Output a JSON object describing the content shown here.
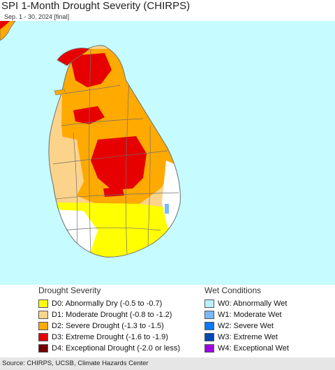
{
  "header": {
    "title": "SPI 1-Month Drought Severity (CHIRPS)",
    "subtitle": "Sep. 1 - 30, 2024 [final]"
  },
  "map": {
    "ocean_color": "#c6fbff",
    "boundary_color": "#6f6f6f"
  },
  "legend": {
    "drought_title": "Drought Severity",
    "wet_title": "Wet Conditions",
    "drought": [
      {
        "label": "D0: Abnormally Dry (-0.5 to -0.7)",
        "color": "#ffff00"
      },
      {
        "label": "D1: Moderate Drought (-0.8 to -1.2)",
        "color": "#fcd38a"
      },
      {
        "label": "D2: Severe Drought (-1.3 to -1.5)",
        "color": "#ffaa00"
      },
      {
        "label": "D3: Extreme Drought (-1.6 to -1.9)",
        "color": "#e60000"
      },
      {
        "label": "D4: Exceptional Drought (-2.0 or less)",
        "color": "#730000"
      }
    ],
    "wet": [
      {
        "label": "W0: Abnormally Wet",
        "color": "#b9f0ff"
      },
      {
        "label": "W1: Moderate Wet",
        "color": "#78b9ff"
      },
      {
        "label": "W2: Severe Wet",
        "color": "#0a78ff"
      },
      {
        "label": "W3: Extreme Wet",
        "color": "#0046b4"
      },
      {
        "label": "W4: Exceptional Wet",
        "color": "#a000e6"
      }
    ]
  },
  "footer": {
    "source": "Source: CHIRPS, UCSB, Climate Hazards Center"
  }
}
